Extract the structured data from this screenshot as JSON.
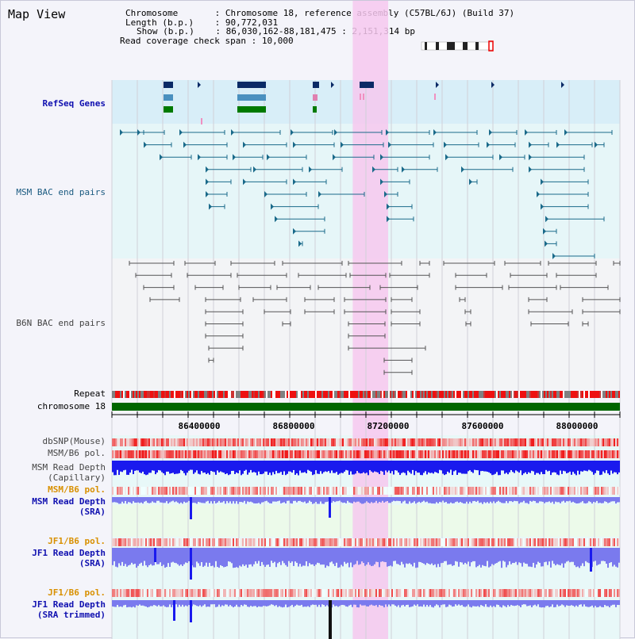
{
  "title": "Map View",
  "info": {
    "chromosome_key": "Chromosome",
    "chromosome_val": "Chromosome 18, reference assembly (C57BL/6J) (Build 37)",
    "length_key": "Length (b.p.)",
    "length_val": "90,772,031",
    "show_key": "Show (b.p.)",
    "show_val": "86,030,162-88,181,475 : 2,151,314 bp",
    "coverage_key": "Read coverage check span",
    "coverage_val": "10,000"
  },
  "tracks": {
    "refseq": "RefSeq Genes",
    "msm_bac": "MSM BAC end pairs",
    "b6n_bac": "B6N BAC end pairs",
    "repeat": "Repeat",
    "chromosome": "chromosome 18",
    "dbsnp": "dbSNP(Mouse)",
    "msm_b6_pol_1": "MSM/B6 pol.",
    "msm_depth_cap_1": "MSM Read Depth",
    "msm_depth_cap_2": "(Capillary)",
    "msm_b6_pol_2": "MSM/B6 pol.",
    "msm_depth_sra_1": "MSM Read Depth",
    "msm_depth_sra_2": "(SRA)",
    "jf1_b6_pol_1": "JF1/B6 pol.",
    "jf1_depth_sra_1": "JF1 Read Depth",
    "jf1_depth_sra_2": "(SRA)",
    "jf1_b6_pol_2": "JF1/B6 pol.",
    "jf1_depth_trim_1": "JF1 Read Depth",
    "jf1_depth_trim_2": "(SRA trimmed)"
  },
  "axis": {
    "ticks": [
      "86400000",
      "86800000",
      "87200000",
      "87600000",
      "88000000"
    ],
    "start_bp": 86030162,
    "end_bp": 88181475
  },
  "highlight": {
    "start_bp": 87050000,
    "end_bp": 87200000
  },
  "colors": {
    "refseq_bg": "#d8eef8",
    "bac_bg": "#e6f6f8",
    "b6n_bg": "#f3f4f6",
    "highlight": "#f6c8ee",
    "gene_dark": "#0a2a66",
    "gene_mid": "#4a90bf",
    "gene_green": "#007a00",
    "msm_bac": "#1a6a8a",
    "b6n_bac": "#555555",
    "chromosome_bar": "#006600",
    "depth_blue": "#1a1aee",
    "depth_light": "#7a7aee"
  }
}
